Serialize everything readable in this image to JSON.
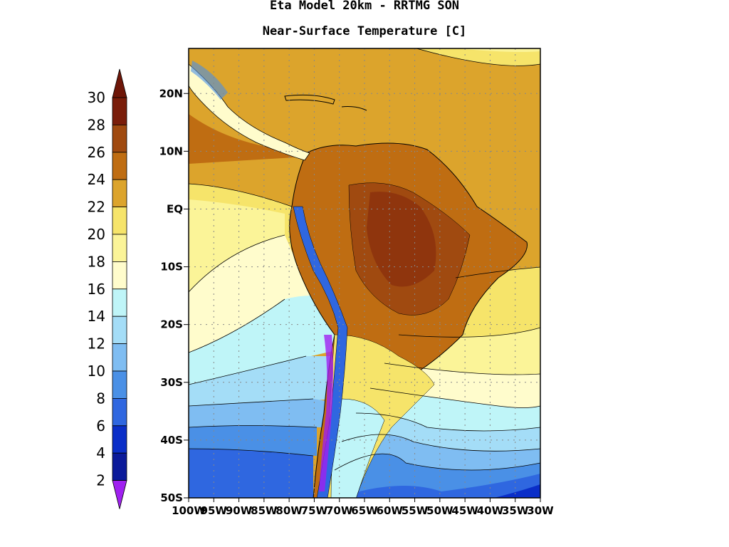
{
  "title_line1": "Eta Model 20km - RRTMG SON",
  "title_line2": "Near-Surface Temperature [C]",
  "colorbar": {
    "labels": [
      "30",
      "28",
      "26",
      "24",
      "22",
      "20",
      "18",
      "16",
      "14",
      "12",
      "10",
      "8",
      "6",
      "4",
      "2"
    ],
    "colors": [
      "#7a1d0a",
      "#a04a10",
      "#bf6d12",
      "#dca42c",
      "#f6e46a",
      "#fbf498",
      "#fffccc",
      "#bff5f8",
      "#a4ddf7",
      "#7fbdf2",
      "#4a90e6",
      "#2f67e0",
      "#0a2ec8",
      "#0b1a9a"
    ],
    "top_arrow_color": "#6e1608",
    "bottom_arrow_color": "#a020f0"
  },
  "axes": {
    "lat_labels": [
      "20N",
      "10N",
      "EQ",
      "10S",
      "20S",
      "30S",
      "40S",
      "50S"
    ],
    "lon_labels": [
      "100W",
      "95W",
      "90W",
      "85W",
      "80W",
      "75W",
      "70W",
      "65W",
      "60W",
      "55W",
      "50W",
      "45W",
      "40W",
      "35W",
      "30W"
    ]
  }
}
